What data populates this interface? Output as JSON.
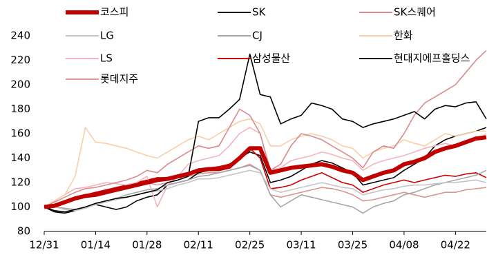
{
  "chart_data": {
    "type": "line",
    "categories": [
      "12/31",
      null,
      null,
      null,
      null,
      "01/14",
      null,
      null,
      null,
      null,
      "01/28",
      null,
      null,
      null,
      null,
      "02/11",
      null,
      null,
      null,
      null,
      "02/25",
      null,
      null,
      null,
      null,
      "03/11",
      null,
      null,
      null,
      null,
      "03/25",
      null,
      null,
      null,
      null,
      "04/08",
      null,
      null,
      null,
      null,
      "04/22",
      null,
      null,
      null
    ],
    "ylim": [
      80,
      240
    ],
    "yticks": [
      80,
      100,
      120,
      140,
      160,
      180,
      200,
      220,
      240
    ],
    "grid": false,
    "series": [
      {
        "name": "코스피",
        "color": "#c00000",
        "width": 6,
        "values": [
          100,
          101,
          104,
          107,
          109,
          110,
          112,
          114,
          116,
          118,
          120,
          122,
          123,
          125,
          127,
          130,
          131,
          131,
          133,
          140,
          148,
          148,
          128,
          130,
          132,
          133,
          134,
          135,
          133,
          130,
          128,
          122,
          125,
          128,
          130,
          135,
          137,
          140,
          145,
          148,
          150,
          153,
          156,
          157
        ]
      },
      {
        "name": "SK",
        "color": "#000000",
        "width": 1.6,
        "values": [
          100,
          97,
          96,
          98,
          100,
          103,
          105,
          107,
          108,
          110,
          112,
          114,
          120,
          122,
          125,
          170,
          173,
          173,
          180,
          188,
          225,
          192,
          190,
          168,
          172,
          175,
          185,
          183,
          180,
          172,
          170,
          165,
          168,
          170,
          172,
          175,
          178,
          172,
          180,
          183,
          182,
          185,
          186,
          172
        ]
      },
      {
        "name": "SK스퀘어",
        "color": "#d98a8e",
        "width": 1.6,
        "values": [
          100,
          104,
          108,
          112,
          115,
          116,
          118,
          120,
          122,
          125,
          130,
          128,
          135,
          140,
          145,
          150,
          148,
          150,
          165,
          180,
          175,
          160,
          130,
          135,
          150,
          160,
          158,
          155,
          150,
          145,
          140,
          132,
          145,
          150,
          148,
          160,
          175,
          185,
          190,
          195,
          200,
          210,
          220,
          228
        ]
      },
      {
        "name": "LG",
        "color": "#c4c4c4",
        "width": 1.6,
        "values": [
          100,
          100,
          98,
          97,
          99,
          102,
          104,
          106,
          108,
          110,
          112,
          113,
          115,
          118,
          120,
          123,
          123,
          124,
          126,
          128,
          130,
          128,
          115,
          112,
          114,
          116,
          118,
          120,
          118,
          116,
          115,
          110,
          112,
          114,
          115,
          117,
          118,
          118,
          119,
          120,
          120,
          121,
          122,
          120
        ]
      },
      {
        "name": "CJ",
        "color": "#a6a6a6",
        "width": 1.6,
        "values": [
          100,
          100,
          99,
          98,
          100,
          102,
          105,
          107,
          110,
          112,
          114,
          115,
          118,
          120,
          122,
          125,
          126,
          128,
          130,
          132,
          134,
          130,
          110,
          100,
          105,
          110,
          108,
          106,
          104,
          102,
          100,
          95,
          100,
          103,
          105,
          110,
          112,
          115,
          118,
          120,
          122,
          124,
          126,
          130
        ]
      },
      {
        "name": "한화",
        "color": "#f8cfa6",
        "width": 1.6,
        "values": [
          100,
          105,
          110,
          125,
          165,
          153,
          152,
          150,
          148,
          145,
          142,
          140,
          145,
          150,
          155,
          158,
          155,
          160,
          165,
          170,
          172,
          168,
          150,
          150,
          155,
          158,
          160,
          158,
          155,
          150,
          148,
          140,
          145,
          148,
          150,
          155,
          152,
          150,
          155,
          160,
          158,
          160,
          162,
          162
        ]
      },
      {
        "name": "LS",
        "color": "#f2b5bf",
        "width": 1.6,
        "values": [
          100,
          105,
          110,
          115,
          116,
          118,
          120,
          119,
          118,
          120,
          125,
          100,
          118,
          125,
          135,
          138,
          140,
          142,
          150,
          160,
          165,
          160,
          130,
          132,
          138,
          140,
          142,
          145,
          143,
          140,
          138,
          130,
          135,
          138,
          140,
          142,
          145,
          148,
          150,
          152,
          150,
          152,
          155,
          160
        ]
      },
      {
        "name": "삼성물산",
        "color": "#cc0000",
        "width": 1.6,
        "values": [
          100,
          102,
          105,
          108,
          110,
          112,
          114,
          116,
          118,
          120,
          122,
          124,
          124,
          125,
          128,
          130,
          132,
          133,
          135,
          140,
          148,
          140,
          115,
          116,
          118,
          122,
          125,
          128,
          124,
          120,
          118,
          112,
          115,
          118,
          120,
          122,
          120,
          122,
          124,
          126,
          125,
          127,
          128,
          124
        ]
      },
      {
        "name": "현대지에프홀딩스",
        "color": "#000000",
        "width": 1.6,
        "values": [
          100,
          96,
          95,
          97,
          100,
          102,
          100,
          98,
          100,
          105,
          108,
          110,
          118,
          120,
          122,
          128,
          130,
          132,
          135,
          140,
          145,
          142,
          120,
          122,
          125,
          130,
          135,
          138,
          136,
          132,
          128,
          118,
          120,
          122,
          124,
          130,
          135,
          140,
          150,
          155,
          158,
          160,
          162,
          165
        ]
      },
      {
        "name": "롯데지주",
        "color": "#d99694",
        "width": 1.6,
        "values": [
          100,
          102,
          104,
          106,
          108,
          110,
          112,
          114,
          116,
          118,
          120,
          118,
          120,
          122,
          125,
          127,
          128,
          128,
          130,
          132,
          135,
          130,
          110,
          108,
          110,
          112,
          114,
          116,
          115,
          113,
          110,
          105,
          106,
          108,
          110,
          112,
          110,
          108,
          110,
          112,
          112,
          114,
          115,
          116
        ]
      }
    ]
  }
}
